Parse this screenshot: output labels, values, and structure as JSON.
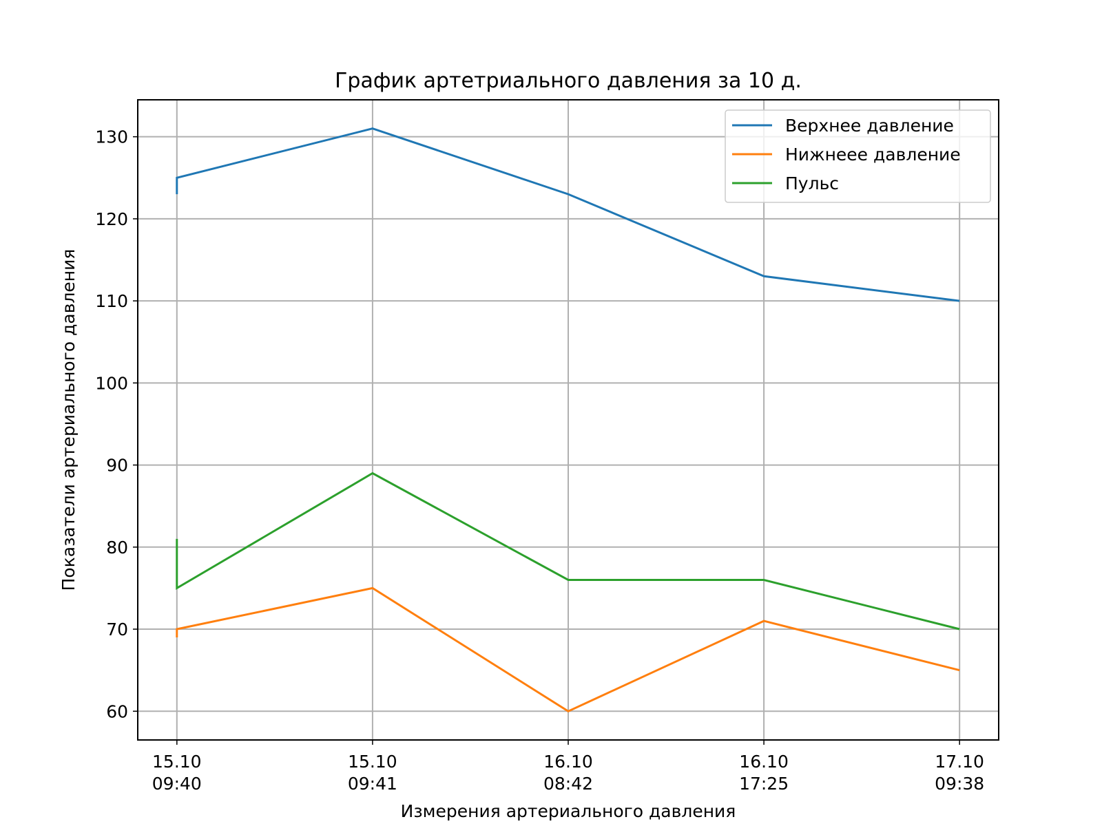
{
  "chart_data": {
    "type": "line",
    "title": "График артетриального давления за 10 д.",
    "xlabel": "Измерения артериального давления",
    "ylabel": "Показатели артериального давления",
    "grid": true,
    "legend_position": "top-right",
    "ylim": [
      56.5,
      134.5
    ],
    "yticks": [
      60,
      70,
      80,
      90,
      100,
      110,
      120,
      130
    ],
    "x_ticks": [
      {
        "index": 0.5,
        "line1": "15.10",
        "line2": "09:40"
      },
      {
        "index": 3.5,
        "line1": "15.10",
        "line2": "09:41"
      },
      {
        "index": 6.5,
        "line1": "16.10",
        "line2": "08:42"
      },
      {
        "index": 9.5,
        "line1": "16.10",
        "line2": "17:25"
      },
      {
        "index": 12.5,
        "line1": "17.10",
        "line2": "09:38"
      }
    ],
    "series": [
      {
        "name": "Верхнее давление",
        "color": "#1f77b4",
        "points": [
          [
            0.5,
            123
          ],
          [
            0.5,
            125
          ],
          [
            3.5,
            131
          ],
          [
            6.5,
            123
          ],
          [
            9.5,
            113
          ],
          [
            12.5,
            110
          ]
        ]
      },
      {
        "name": "Нижнеее давление",
        "color": "#ff7f0e",
        "points": [
          [
            0.5,
            69
          ],
          [
            0.5,
            70
          ],
          [
            3.5,
            75
          ],
          [
            6.5,
            60
          ],
          [
            9.5,
            71
          ],
          [
            12.5,
            65
          ]
        ]
      },
      {
        "name": "Пульс",
        "color": "#2ca02c",
        "points": [
          [
            0.5,
            81
          ],
          [
            0.5,
            75
          ],
          [
            3.5,
            89
          ],
          [
            6.5,
            76
          ],
          [
            9.5,
            76
          ],
          [
            12.5,
            70
          ]
        ]
      }
    ]
  }
}
